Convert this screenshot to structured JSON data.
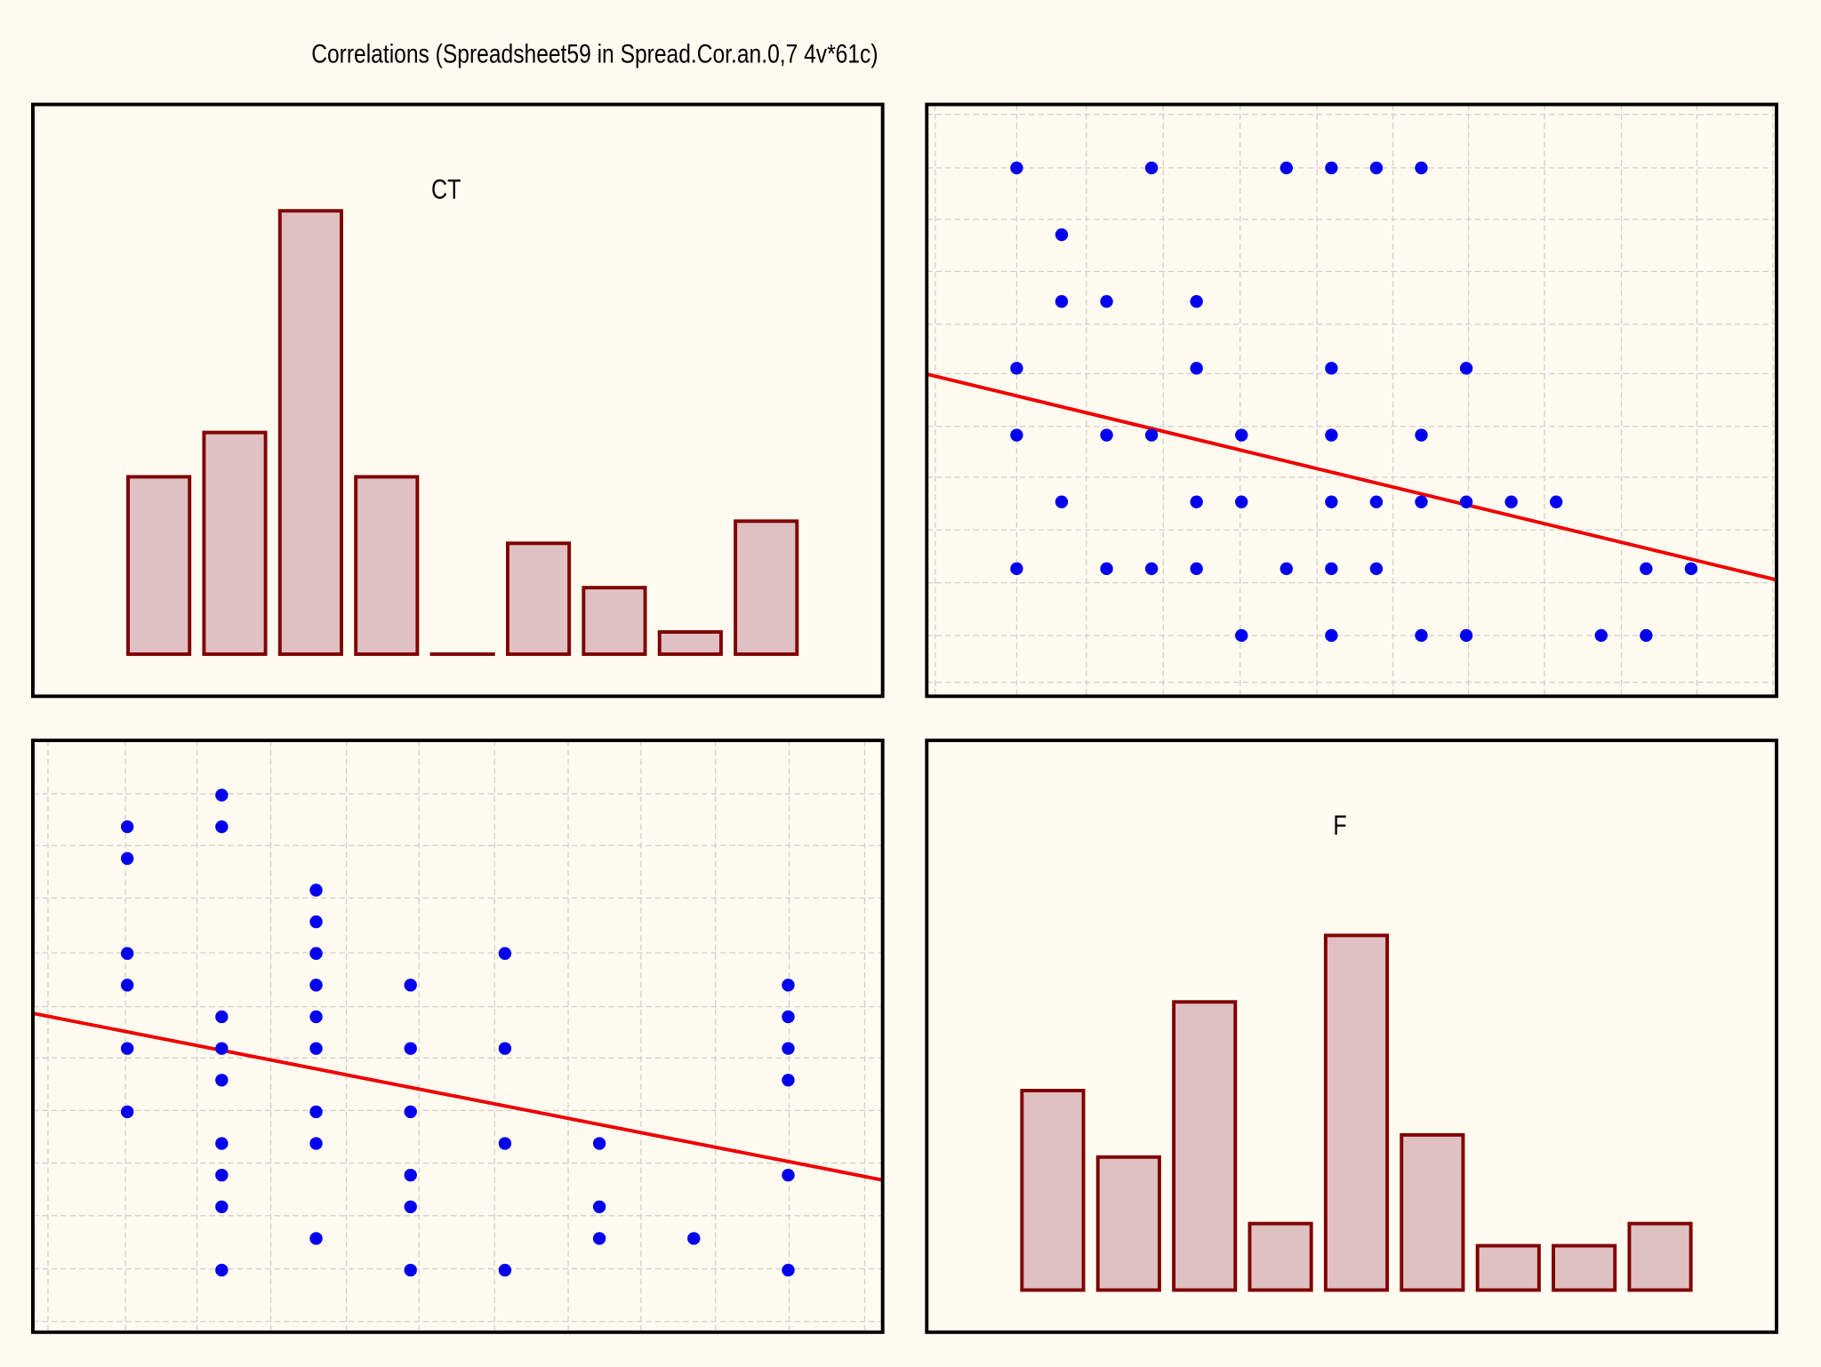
{
  "title": "Correlations (Spreadsheet59 in Spread.Cor.an.0,7 4v*61c)",
  "chart_data": [
    {
      "type": "bar",
      "title": "CT",
      "values": [
        8,
        10,
        20,
        8,
        0,
        5,
        3,
        1,
        6
      ],
      "ylim": [
        -1.9,
        24.8
      ],
      "color": "#dfc1c4",
      "edge_color": "#800000"
    },
    {
      "type": "scatter",
      "x": [
        1,
        4,
        7,
        8,
        9,
        10,
        2,
        2,
        3,
        5,
        1,
        5,
        8,
        11,
        1,
        3,
        4,
        6,
        8,
        10,
        2,
        5,
        6,
        8,
        9,
        10,
        11,
        12,
        13,
        1,
        3,
        4,
        5,
        7,
        8,
        9,
        15,
        16,
        6,
        8,
        10,
        11,
        14,
        15
      ],
      "y": [
        8,
        8,
        8,
        8,
        8,
        8,
        7,
        6,
        6,
        6,
        5,
        5,
        5,
        5,
        4,
        4,
        4,
        4,
        4,
        4,
        3,
        3,
        3,
        3,
        3,
        3,
        3,
        3,
        3,
        2,
        2,
        2,
        2,
        2,
        2,
        2,
        2,
        2,
        1,
        1,
        1,
        1,
        1,
        1
      ],
      "fit": {
        "intercept": 4.75,
        "slope": -0.163
      },
      "xlim": [
        -1.0,
        17.9
      ],
      "ylim": [
        0.09,
        8.95
      ],
      "xticks": [
        -0.81,
        1,
        2.55,
        4.26,
        5.97,
        7.68,
        9.37,
        11.05,
        12.74,
        14.45,
        16.13,
        17.82
      ],
      "yticks": [
        0.3,
        1,
        1.79,
        2.58,
        3.37,
        4.13,
        4.92,
        5.66,
        6.45,
        7.23,
        8.0,
        8.8
      ],
      "grid": true,
      "color": "#0000ee",
      "line_color": "#ee0000"
    },
    {
      "type": "scatter",
      "x": [
        1,
        1,
        1,
        1,
        1,
        1,
        2,
        2,
        2,
        2,
        2,
        2,
        2,
        2,
        2,
        3,
        3,
        3,
        3,
        3,
        3,
        3,
        3,
        3,
        4,
        4,
        4,
        4,
        4,
        4,
        5,
        5,
        5,
        5,
        6,
        6,
        6,
        7,
        8,
        8,
        8,
        8,
        8,
        8
      ],
      "y": [
        15,
        14,
        11,
        10,
        8,
        6,
        16,
        15,
        9,
        8,
        7,
        5,
        4,
        3,
        1,
        13,
        12,
        11,
        10,
        9,
        8,
        6,
        5,
        2,
        10,
        8,
        6,
        4,
        3,
        1,
        11,
        8,
        5,
        1,
        5,
        3,
        2,
        2,
        10,
        9,
        8,
        7,
        4,
        1
      ],
      "fit": {
        "intercept": 9.11,
        "slope": -0.585
      },
      "xlim": [
        0,
        9.0
      ],
      "ylim": [
        -0.96,
        17.73
      ],
      "xticks": [
        0.16,
        0.98,
        1.74,
        2.52,
        3.32,
        4.09,
        4.89,
        5.67,
        6.44,
        7.23,
        8.01,
        8.81
      ],
      "yticks": [
        -0.62,
        1.04,
        2.72,
        4.38,
        6.04,
        7.7,
        9.32,
        11.02,
        12.75,
        14.41,
        16.04
      ],
      "grid": true,
      "color": "#0000ee",
      "line_color": "#ee0000"
    },
    {
      "type": "bar",
      "title": "F",
      "values": [
        9,
        6,
        13,
        3,
        16,
        7,
        2,
        2,
        3
      ],
      "ylim": [
        -1.9,
        24.8
      ],
      "color": "#dfc1c4",
      "edge_color": "#800000"
    }
  ]
}
